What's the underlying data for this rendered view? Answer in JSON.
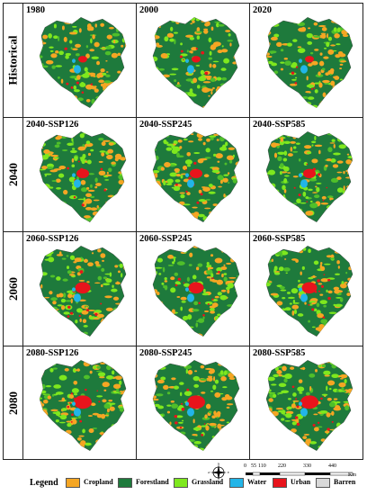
{
  "row_labels": [
    "Historical",
    "2040",
    "2060",
    "2080"
  ],
  "panels": [
    [
      "1980",
      "2000",
      "2020"
    ],
    [
      "2040-SSP126",
      "2040-SSP245",
      "2040-SSP585"
    ],
    [
      "2060-SSP126",
      "2060-SSP245",
      "2060-SSP585"
    ],
    [
      "2080-SSP126",
      "2080-SSP245",
      "2080-SSP585"
    ]
  ],
  "legend": {
    "title": "Legend",
    "items": [
      {
        "label": "Cropland",
        "color": "#f5a623"
      },
      {
        "label": "Forestland",
        "color": "#1e7a3c"
      },
      {
        "label": "Grassland",
        "color": "#7ee81e"
      },
      {
        "label": "Water",
        "color": "#22b5e8"
      },
      {
        "label": "Urban",
        "color": "#e8141c"
      },
      {
        "label": "Barren",
        "color": "#d8d8d8"
      }
    ]
  },
  "compass": {
    "n": "N",
    "s": "S",
    "e": "E",
    "w": "W"
  },
  "scale_bar": {
    "ticks": [
      "0",
      "55",
      "110",
      "220",
      "330",
      "440"
    ],
    "unit": "Km"
  }
}
